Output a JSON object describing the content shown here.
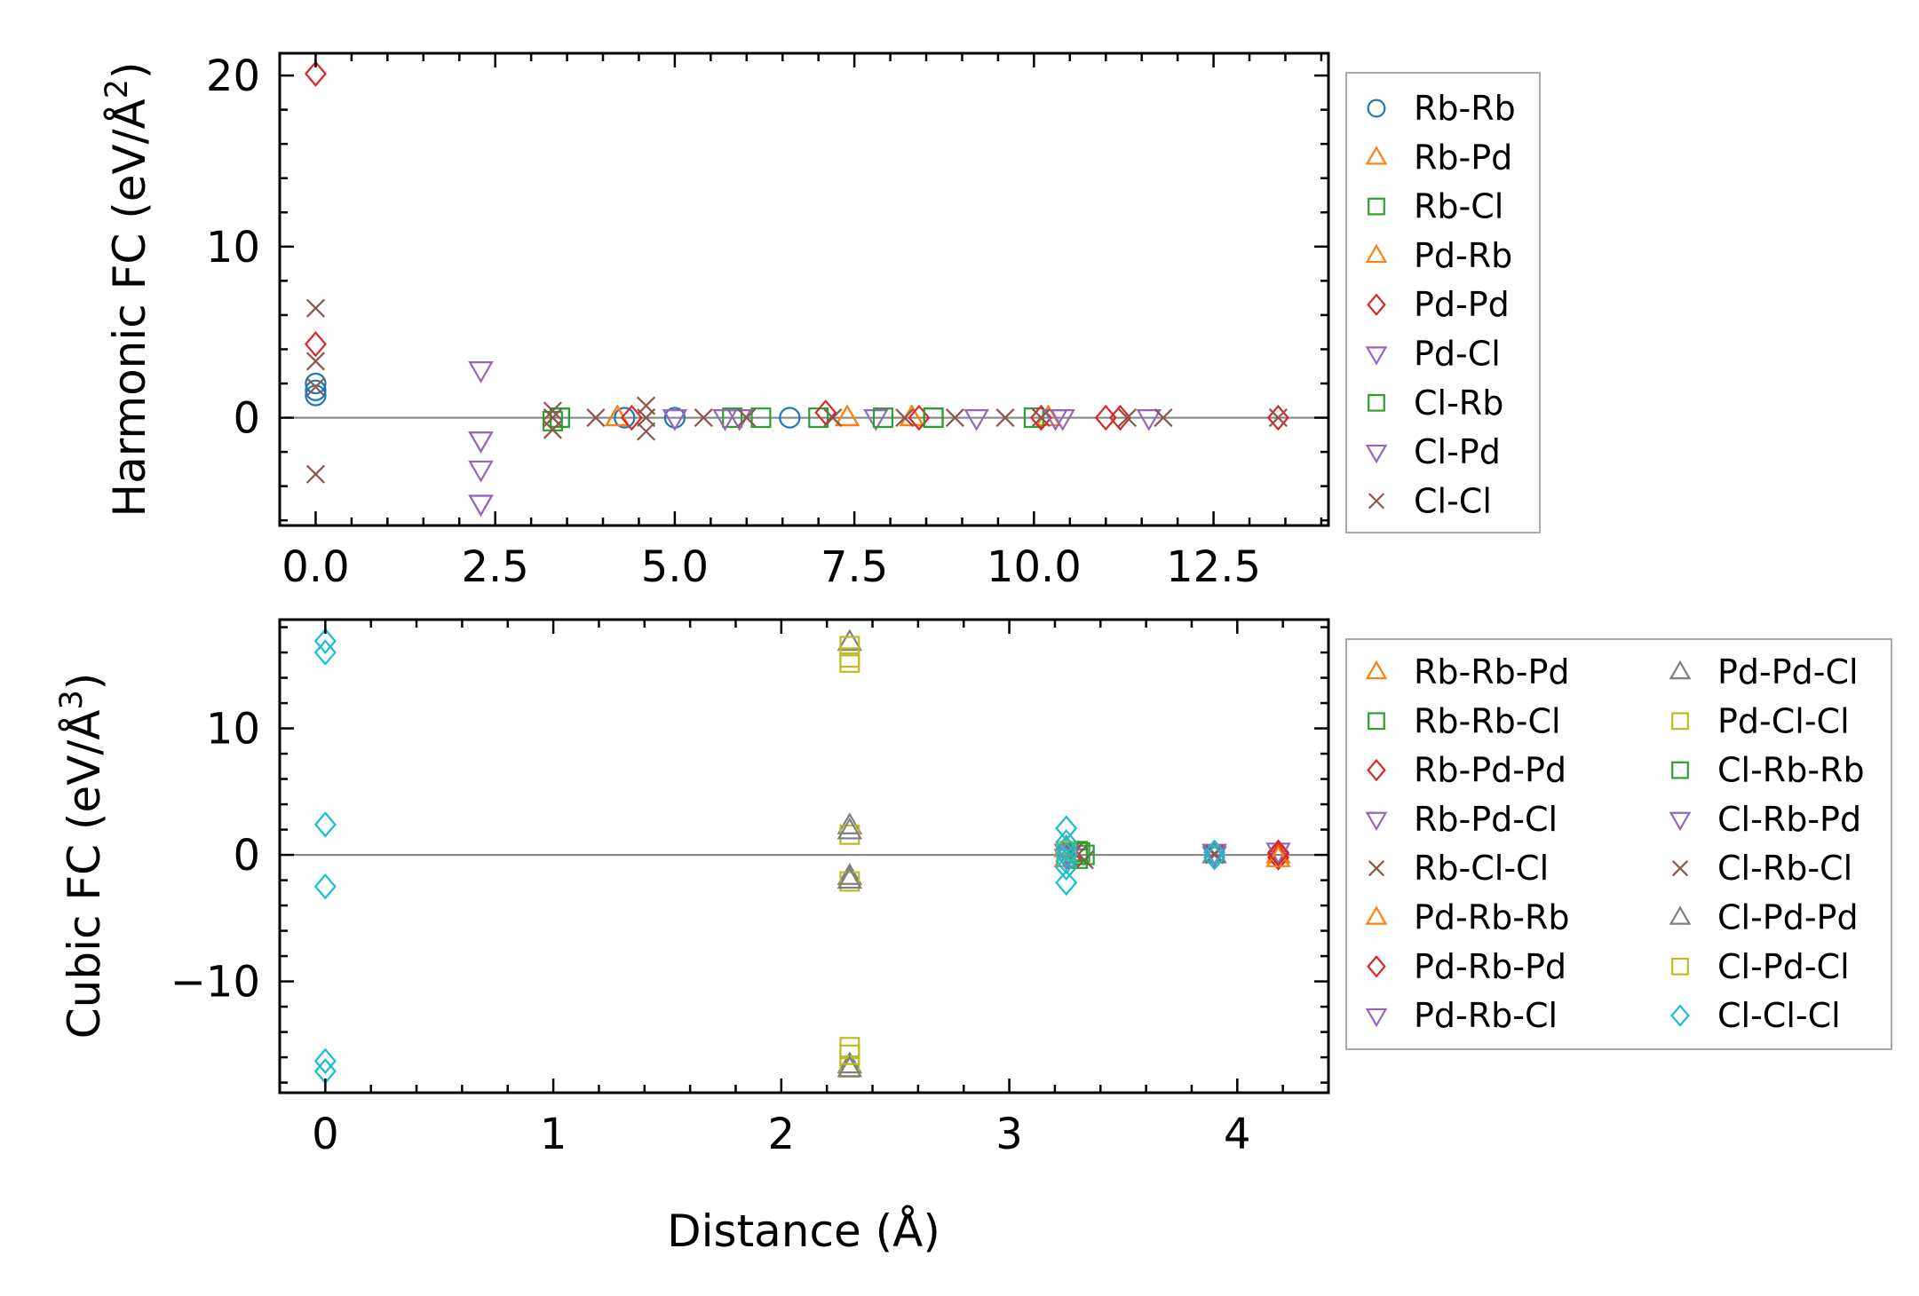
{
  "chart_data": [
    {
      "type": "scatter",
      "ylabel": "Harmonic FC (eV/Å²)",
      "ylabel_main": "Harmonic FC (eV/Å",
      "ylabel_sup": "2",
      "ylabel_close": ")",
      "xlabel": "",
      "xlim": [
        -0.5,
        14.1
      ],
      "ylim": [
        -6.3,
        21.3
      ],
      "xticks": [
        "0.0",
        "2.5",
        "5.0",
        "7.5",
        "10.0",
        "12.5"
      ],
      "yticks": [
        "0",
        "10",
        "20"
      ],
      "zero_line": true,
      "legend_position": "outside-right",
      "series": [
        {
          "name": "Rb-Rb",
          "marker": "circle",
          "color": "#1f77b4",
          "points": [
            [
              0,
              2.0
            ],
            [
              0,
              1.3
            ],
            [
              0,
              1.6
            ],
            [
              4.3,
              0
            ],
            [
              5.0,
              0
            ],
            [
              6.6,
              0
            ]
          ]
        },
        {
          "name": "Rb-Pd",
          "marker": "triangle-up",
          "color": "#ff7f0e",
          "points": [
            [
              4.2,
              0
            ],
            [
              7.4,
              0
            ],
            [
              8.3,
              0
            ],
            [
              10.2,
              0
            ]
          ]
        },
        {
          "name": "Rb-Cl",
          "marker": "square",
          "color": "#2ca02c",
          "points": [
            [
              3.3,
              -0.2
            ],
            [
              3.4,
              0
            ],
            [
              5.8,
              0
            ],
            [
              6.2,
              0
            ],
            [
              7.0,
              0
            ],
            [
              8.6,
              0
            ],
            [
              10.0,
              0
            ]
          ]
        },
        {
          "name": "Pd-Rb",
          "marker": "triangle-up",
          "color": "#ff7f0e",
          "points": [
            [
              4.2,
              0
            ],
            [
              7.4,
              0
            ],
            [
              8.3,
              0
            ]
          ]
        },
        {
          "name": "Pd-Pd",
          "marker": "diamond",
          "color": "#d62728",
          "points": [
            [
              0,
              20.1
            ],
            [
              0,
              4.3
            ],
            [
              4.4,
              0
            ],
            [
              7.1,
              0.3
            ],
            [
              8.4,
              0
            ],
            [
              10.1,
              0
            ],
            [
              11.0,
              0
            ],
            [
              11.2,
              0
            ],
            [
              13.4,
              0
            ]
          ]
        },
        {
          "name": "Pd-Cl",
          "marker": "triangle-down",
          "color": "#9467bd",
          "points": [
            [
              2.3,
              2.8
            ],
            [
              2.3,
              -1.3
            ],
            [
              2.3,
              -3.0
            ],
            [
              2.3,
              -5.0
            ],
            [
              5.0,
              0
            ],
            [
              5.7,
              0
            ],
            [
              7.8,
              0
            ],
            [
              9.2,
              0
            ],
            [
              10.4,
              0
            ],
            [
              11.6,
              0
            ]
          ]
        },
        {
          "name": "Cl-Rb",
          "marker": "square",
          "color": "#2ca02c",
          "points": [
            [
              3.4,
              0
            ],
            [
              7.9,
              0
            ],
            [
              8.6,
              0
            ]
          ]
        },
        {
          "name": "Cl-Pd",
          "marker": "triangle-down",
          "color": "#9467bd",
          "points": [
            [
              2.3,
              -1.3
            ],
            [
              2.3,
              -5.0
            ],
            [
              5.9,
              0
            ],
            [
              10.3,
              0
            ]
          ]
        },
        {
          "name": "Cl-Cl",
          "marker": "x",
          "color": "#8c564b",
          "points": [
            [
              0,
              6.4
            ],
            [
              0,
              3.3
            ],
            [
              0,
              1.8
            ],
            [
              0,
              -3.3
            ],
            [
              3.3,
              0.4
            ],
            [
              3.3,
              -0.7
            ],
            [
              3.3,
              0
            ],
            [
              3.9,
              0
            ],
            [
              4.6,
              0.7
            ],
            [
              4.6,
              -0.8
            ],
            [
              4.6,
              0
            ],
            [
              5.4,
              0
            ],
            [
              6.0,
              0
            ],
            [
              7.2,
              0
            ],
            [
              8.2,
              0
            ],
            [
              8.9,
              0
            ],
            [
              9.6,
              0
            ],
            [
              10.1,
              0
            ],
            [
              11.3,
              0
            ],
            [
              11.8,
              0
            ],
            [
              13.4,
              0
            ]
          ]
        }
      ]
    },
    {
      "type": "scatter",
      "ylabel": "Cubic FC (eV/Å³)",
      "ylabel_main": "Cubic FC (eV/Å",
      "ylabel_sup": "3",
      "ylabel_close": ")",
      "xlabel": "Distance (Å)",
      "xlim": [
        -0.2,
        4.4
      ],
      "ylim": [
        -18.8,
        18.6
      ],
      "xticks": [
        "0",
        "1",
        "2",
        "3",
        "4"
      ],
      "yticks": [
        "−10",
        "0",
        "10"
      ],
      "zero_line": true,
      "legend_position": "outside-right",
      "series": [
        {
          "name": "Rb-Rb-Pd",
          "marker": "triangle-up",
          "color": "#ff7f0e",
          "points": [
            [
              3.25,
              0.5
            ],
            [
              3.25,
              -0.3
            ],
            [
              4.18,
              0
            ]
          ]
        },
        {
          "name": "Rb-Rb-Cl",
          "marker": "square",
          "color": "#2ca02c",
          "points": [
            [
              3.3,
              0.3
            ],
            [
              3.3,
              -0.3
            ],
            [
              3.33,
              0
            ]
          ]
        },
        {
          "name": "Rb-Pd-Pd",
          "marker": "diamond",
          "color": "#d62728",
          "points": [
            [
              4.18,
              0.2
            ],
            [
              4.18,
              -0.2
            ]
          ]
        },
        {
          "name": "Rb-Pd-Cl",
          "marker": "triangle-down",
          "color": "#9467bd",
          "points": [
            [
              3.25,
              0.2
            ],
            [
              3.9,
              0
            ],
            [
              4.18,
              0.3
            ]
          ]
        },
        {
          "name": "Rb-Cl-Cl",
          "marker": "x",
          "color": "#8c564b",
          "points": [
            [
              3.27,
              0.4
            ],
            [
              3.3,
              0
            ],
            [
              3.33,
              -0.4
            ],
            [
              3.9,
              0
            ]
          ]
        },
        {
          "name": "Pd-Rb-Rb",
          "marker": "triangle-up",
          "color": "#ff7f0e",
          "points": [
            [
              3.25,
              0.6
            ],
            [
              4.18,
              -0.3
            ]
          ]
        },
        {
          "name": "Pd-Rb-Pd",
          "marker": "diamond",
          "color": "#d62728",
          "points": [
            [
              4.18,
              0.1
            ]
          ]
        },
        {
          "name": "Pd-Rb-Cl",
          "marker": "triangle-down",
          "color": "#9467bd",
          "points": [
            [
              3.25,
              -0.2
            ],
            [
              3.9,
              0.2
            ]
          ]
        },
        {
          "name": "Pd-Pd-Cl",
          "marker": "triangle-up",
          "color": "#7f7f7f",
          "points": [
            [
              2.3,
              16.8
            ],
            [
              2.3,
              2.3
            ],
            [
              2.3,
              -1.7
            ],
            [
              2.3,
              -16.6
            ],
            [
              3.9,
              0
            ]
          ]
        },
        {
          "name": "Pd-Cl-Cl",
          "marker": "square",
          "color": "#bcbd22",
          "points": [
            [
              2.3,
              15.2
            ],
            [
              2.3,
              16.5
            ],
            [
              2.3,
              1.6
            ],
            [
              2.3,
              -2.1
            ],
            [
              2.3,
              -15.2
            ],
            [
              2.3,
              -16.8
            ]
          ]
        },
        {
          "name": "Cl-Rb-Rb",
          "marker": "square",
          "color": "#2ca02c",
          "points": [
            [
              3.31,
              0.2
            ]
          ]
        },
        {
          "name": "Cl-Rb-Pd",
          "marker": "triangle-down",
          "color": "#9467bd",
          "points": [
            [
              3.26,
              0
            ]
          ]
        },
        {
          "name": "Cl-Rb-Cl",
          "marker": "x",
          "color": "#8c564b",
          "points": [
            [
              3.28,
              0.2
            ],
            [
              3.9,
              0.1
            ]
          ]
        },
        {
          "name": "Cl-Pd-Pd",
          "marker": "triangle-up",
          "color": "#7f7f7f",
          "points": [
            [
              2.3,
              1.9
            ],
            [
              2.3,
              -2.0
            ],
            [
              2.3,
              -16.9
            ]
          ]
        },
        {
          "name": "Cl-Pd-Cl",
          "marker": "square",
          "color": "#bcbd22",
          "points": [
            [
              2.3,
              15.6
            ],
            [
              2.3,
              -15.8
            ],
            [
              3.25,
              0.3
            ]
          ]
        },
        {
          "name": "Cl-Cl-Cl",
          "marker": "diamond",
          "color": "#17becf",
          "points": [
            [
              0,
              16.9
            ],
            [
              0,
              16.0
            ],
            [
              0,
              2.4
            ],
            [
              0,
              -2.5
            ],
            [
              0,
              -16.3
            ],
            [
              0,
              -17.1
            ],
            [
              3.25,
              2.1
            ],
            [
              3.25,
              -2.2
            ],
            [
              3.25,
              1.0
            ],
            [
              3.25,
              0.5
            ],
            [
              3.25,
              0
            ],
            [
              3.25,
              -0.5
            ],
            [
              3.25,
              -1.0
            ],
            [
              3.9,
              0.2
            ],
            [
              3.9,
              -0.2
            ]
          ]
        }
      ]
    }
  ]
}
